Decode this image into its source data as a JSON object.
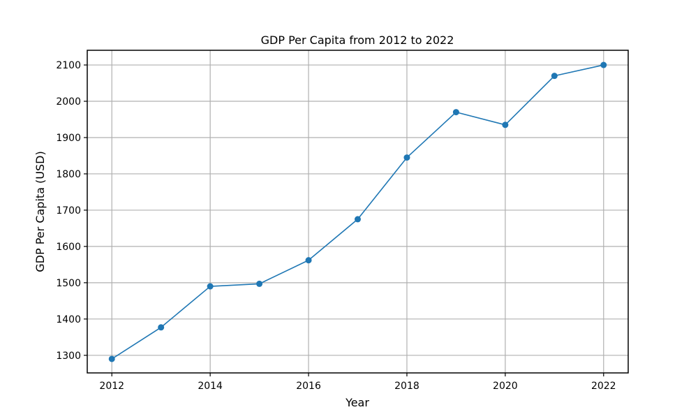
{
  "chart_data": {
    "type": "line",
    "title": "GDP Per Capita from 2012 to 2022",
    "xlabel": "Year",
    "ylabel": "GDP Per Capita (USD)",
    "x": [
      2012,
      2013,
      2014,
      2015,
      2016,
      2017,
      2018,
      2019,
      2020,
      2021,
      2022
    ],
    "series": [
      {
        "values": [
          1290,
          1377,
          1490,
          1497,
          1562,
          1675,
          1845,
          1970,
          1935,
          2070,
          2100
        ]
      }
    ],
    "x_ticks": [
      2012,
      2014,
      2016,
      2018,
      2020,
      2022
    ],
    "y_ticks": [
      1300,
      1400,
      1500,
      1600,
      1700,
      1800,
      1900,
      2000,
      2100
    ],
    "xlim": [
      2011.5,
      2022.5
    ],
    "ylim": [
      1251.5,
      2140.5
    ],
    "grid": true,
    "marker": "circle",
    "colors": {
      "line": "#1f77b4",
      "grid": "#b0b0b0",
      "axes": "#000000"
    }
  }
}
